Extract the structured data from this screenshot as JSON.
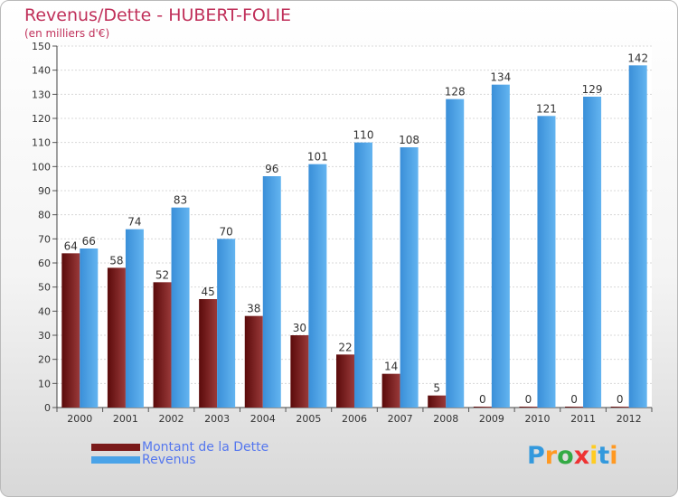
{
  "header": {
    "title": "Revenus/Dette - HUBERT-FOLIE",
    "subtitle": "(en milliers d'€)"
  },
  "legend": {
    "items": [
      {
        "label": "Montant de la Dette",
        "color": "#7a1a1a"
      },
      {
        "label": "Revenus",
        "color": "#4aa3e8"
      }
    ]
  },
  "logo": {
    "text": "Proxiti",
    "letters": [
      "P",
      "r",
      "o",
      "x",
      "i",
      "t",
      "i"
    ],
    "colors": [
      "#3399dd",
      "#ff9922",
      "#33aa44",
      "#ee3333",
      "#ffcc22",
      "#3399dd",
      "#ff9922"
    ]
  },
  "chart_data": {
    "type": "bar",
    "title": "Revenus/Dette - HUBERT-FOLIE",
    "subtitle": "(en milliers d'€)",
    "xlabel": "",
    "ylabel": "",
    "ylim": [
      0,
      150
    ],
    "ytick_step": 10,
    "grid": true,
    "legend_position": "bottom-left",
    "categories": [
      "2000",
      "2001",
      "2002",
      "2003",
      "2004",
      "2005",
      "2006",
      "2007",
      "2008",
      "2009",
      "2010",
      "2011",
      "2012"
    ],
    "series": [
      {
        "name": "Montant de la Dette",
        "color": "#7a1a1a",
        "values": [
          64,
          58,
          52,
          45,
          38,
          30,
          22,
          14,
          5,
          0,
          0,
          0,
          0
        ]
      },
      {
        "name": "Revenus",
        "color": "#4aa3e8",
        "values": [
          66,
          74,
          83,
          70,
          96,
          101,
          110,
          108,
          128,
          134,
          121,
          129,
          142
        ]
      }
    ]
  }
}
